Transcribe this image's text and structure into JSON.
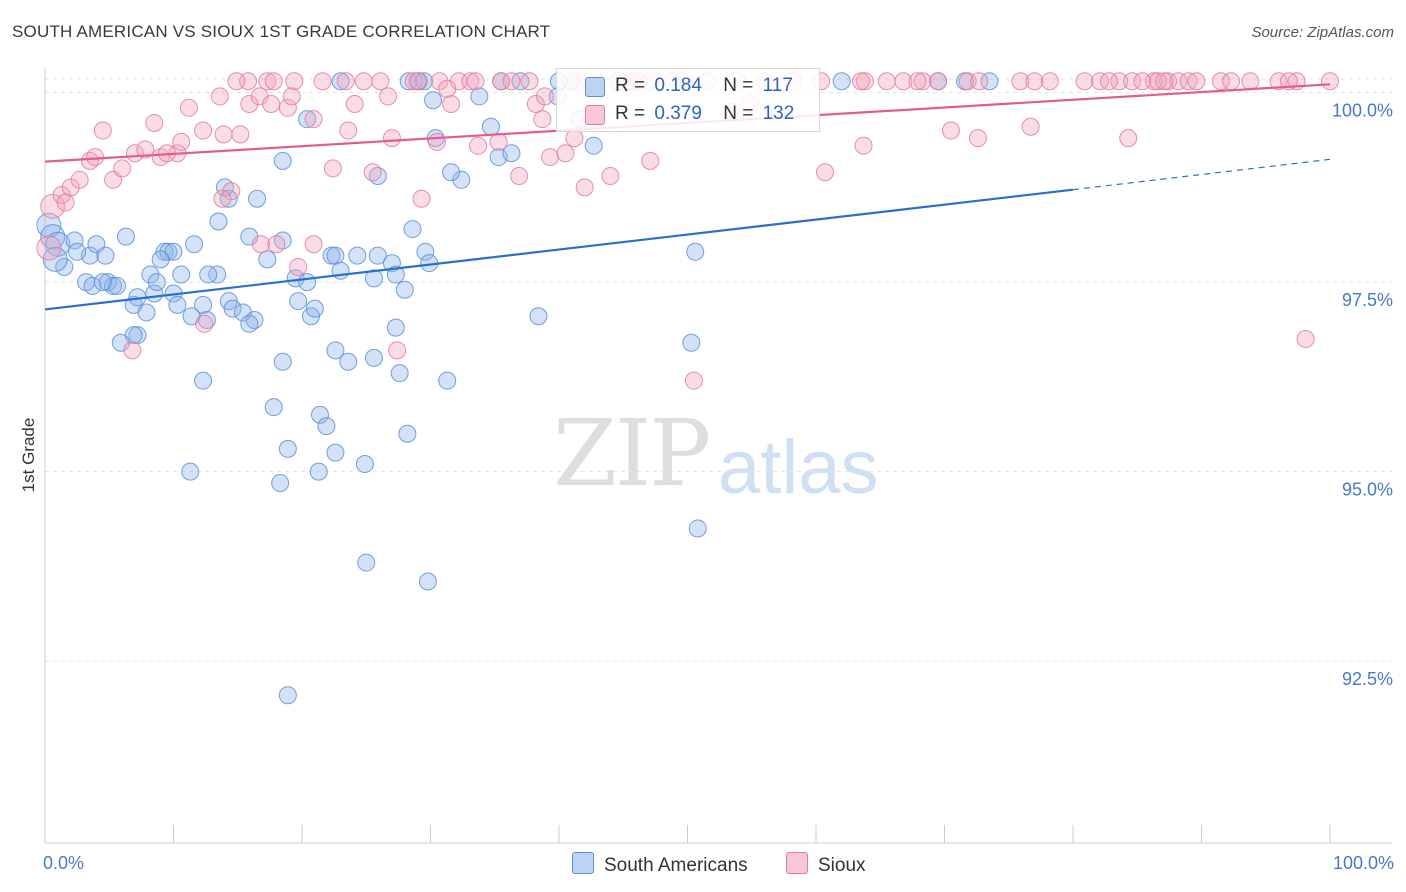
{
  "title": "SOUTH AMERICAN VS SIOUX 1ST GRADE CORRELATION CHART",
  "source": "Source: ZipAtlas.com",
  "watermark": {
    "zip": "ZIP",
    "atlas": "atlas"
  },
  "chart_data": {
    "type": "scatter",
    "ylabel": "1st Grade",
    "xlabel": "",
    "xlim": [
      0,
      100
    ],
    "ylim": [
      90.1,
      100.18
    ],
    "y_ticks": [
      {
        "value": 100.0,
        "label": "100.0%"
      },
      {
        "value": 97.5,
        "label": "97.5%"
      },
      {
        "value": 95.0,
        "label": "95.0%"
      },
      {
        "value": 92.5,
        "label": "92.5%"
      }
    ],
    "x_ticks": [
      {
        "value": 0,
        "label": "0.0%"
      },
      {
        "value": 100,
        "label": "100.0%"
      }
    ],
    "legend": {
      "rows": [
        {
          "r_label": "R =",
          "r": "0.184",
          "n_label": "N =",
          "n": "117",
          "color": "#8fb3ea"
        },
        {
          "r_label": "R =",
          "r": "0.379",
          "n_label": "N =",
          "n": "132",
          "color": "#f2a4be"
        }
      ]
    },
    "series": [
      {
        "name": "South Americans",
        "color": "#8fb3ea",
        "stroke": "#5b8fd8",
        "trend": {
          "x0": 0,
          "y0": 97.14,
          "x1": 80,
          "y1": 98.72,
          "dash_to_x": 100,
          "dash_to_y": 99.12,
          "color": "#2a6fd0"
        },
        "points": [
          [
            0.3,
            98.25
          ],
          [
            0.6,
            98.1
          ],
          [
            1,
            98
          ],
          [
            1.5,
            97.7
          ],
          [
            0.8,
            97.8
          ],
          [
            2.3,
            98.05
          ],
          [
            3.5,
            97.85
          ],
          [
            3.2,
            97.5
          ],
          [
            3.7,
            97.45
          ],
          [
            2.5,
            97.9
          ],
          [
            4,
            98
          ],
          [
            4.7,
            97.85
          ],
          [
            4.9,
            97.5
          ],
          [
            5.3,
            97.45
          ],
          [
            5.6,
            97.45
          ],
          [
            6.3,
            98.1
          ],
          [
            6.9,
            97.2
          ],
          [
            7.2,
            97.3
          ],
          [
            7.9,
            97.1
          ],
          [
            8.2,
            97.6
          ],
          [
            8.5,
            97.35
          ],
          [
            9.3,
            97.9
          ],
          [
            9.6,
            97.9
          ],
          [
            10,
            97.35
          ],
          [
            10.3,
            97.2
          ],
          [
            10.6,
            97.6
          ],
          [
            11.4,
            97.05
          ],
          [
            12.3,
            97.2
          ],
          [
            12.6,
            97
          ],
          [
            13.4,
            97.6
          ],
          [
            12.7,
            97.6
          ],
          [
            14.3,
            97.25
          ],
          [
            14.6,
            97.15
          ],
          [
            15.4,
            97.1
          ],
          [
            16.3,
            97
          ],
          [
            15.9,
            96.95
          ],
          [
            17.3,
            97.8
          ],
          [
            18.5,
            98.05
          ],
          [
            19.5,
            97.55
          ],
          [
            19.7,
            97.25
          ],
          [
            20.4,
            97.5
          ],
          [
            20.7,
            97.05
          ],
          [
            21,
            97.15
          ],
          [
            22.3,
            97.85
          ],
          [
            22.6,
            97.85
          ],
          [
            23,
            97.65
          ],
          [
            24.3,
            97.85
          ],
          [
            25.9,
            97.85
          ],
          [
            25.6,
            97.55
          ],
          [
            27,
            97.75
          ],
          [
            27.3,
            97.6
          ],
          [
            28,
            97.4
          ],
          [
            28.6,
            98.2
          ],
          [
            29.6,
            97.9
          ],
          [
            29.9,
            97.75
          ],
          [
            16.5,
            98.6
          ],
          [
            14.3,
            98.6
          ],
          [
            14,
            98.75
          ],
          [
            15.9,
            98.1
          ],
          [
            11.6,
            98
          ],
          [
            10,
            97.9
          ],
          [
            8.7,
            97.5
          ],
          [
            7.2,
            96.8
          ],
          [
            6.9,
            96.8
          ],
          [
            5.9,
            96.7
          ],
          [
            12.3,
            96.2
          ],
          [
            18.5,
            96.45
          ],
          [
            22.6,
            96.6
          ],
          [
            23.6,
            96.45
          ],
          [
            25.6,
            96.5
          ],
          [
            27.3,
            96.9
          ],
          [
            27.6,
            96.3
          ],
          [
            31.3,
            96.2
          ],
          [
            17.8,
            95.85
          ],
          [
            21.4,
            95.75
          ],
          [
            21.9,
            95.6
          ],
          [
            18.9,
            95.3
          ],
          [
            22.6,
            95.25
          ],
          [
            24.9,
            95.1
          ],
          [
            28.2,
            95.5
          ],
          [
            11.3,
            95
          ],
          [
            18.3,
            94.85
          ],
          [
            21.3,
            95
          ],
          [
            25,
            93.8
          ],
          [
            29.8,
            93.55
          ],
          [
            18.9,
            92.05
          ],
          [
            38.4,
            97.05
          ],
          [
            34.7,
            99.55
          ],
          [
            35.3,
            99.15
          ],
          [
            36.3,
            99.2
          ],
          [
            32.4,
            98.85
          ],
          [
            31.6,
            98.95
          ],
          [
            30.4,
            99.4
          ],
          [
            29.1,
            100.15
          ],
          [
            30.2,
            99.9
          ],
          [
            28.3,
            100.15
          ],
          [
            23,
            100.15
          ],
          [
            29.5,
            100.15
          ],
          [
            40,
            100.15
          ],
          [
            39.9,
            99.95
          ],
          [
            35.5,
            100.15
          ],
          [
            33.8,
            99.95
          ],
          [
            41.6,
            99.65
          ],
          [
            42.7,
            99.3
          ],
          [
            20.4,
            99.65
          ],
          [
            25.9,
            98.9
          ],
          [
            37,
            100.15
          ],
          [
            50.6,
            97.9
          ],
          [
            50.3,
            96.7
          ],
          [
            50.8,
            94.25
          ],
          [
            69.5,
            100.15
          ],
          [
            71.6,
            100.15
          ],
          [
            73.5,
            100.15
          ],
          [
            62,
            100.15
          ],
          [
            18.5,
            99.1
          ],
          [
            13.5,
            98.3
          ],
          [
            9,
            97.8
          ],
          [
            4.5,
            97.5
          ]
        ]
      },
      {
        "name": "Sioux",
        "color": "#f2a4be",
        "stroke": "#e07c9d",
        "trend": {
          "x0": 0,
          "y0": 99.09,
          "x1": 100,
          "y1": 100.11,
          "color": "#e35d8a"
        },
        "points": [
          [
            0.3,
            97.95
          ],
          [
            0.6,
            98.5
          ],
          [
            1.3,
            98.65
          ],
          [
            1.6,
            98.55
          ],
          [
            2,
            98.75
          ],
          [
            2.7,
            98.85
          ],
          [
            3.5,
            99.1
          ],
          [
            3.9,
            99.15
          ],
          [
            4.5,
            99.5
          ],
          [
            5.3,
            98.85
          ],
          [
            6,
            99
          ],
          [
            7,
            99.2
          ],
          [
            7.8,
            99.25
          ],
          [
            8.5,
            99.6
          ],
          [
            9,
            99.15
          ],
          [
            10.3,
            99.2
          ],
          [
            10.6,
            99.35
          ],
          [
            11.2,
            99.8
          ],
          [
            12.3,
            99.5
          ],
          [
            13.9,
            99.45
          ],
          [
            15.2,
            99.45
          ],
          [
            15.9,
            99.85
          ],
          [
            16.7,
            99.95
          ],
          [
            17.6,
            99.85
          ],
          [
            18.9,
            99.8
          ],
          [
            20.9,
            99.65
          ],
          [
            22.4,
            99
          ],
          [
            23.6,
            99.5
          ],
          [
            25.5,
            98.95
          ],
          [
            27,
            99.4
          ],
          [
            29.3,
            98.6
          ],
          [
            30.5,
            99.35
          ],
          [
            31.6,
            99.85
          ],
          [
            33.7,
            99.3
          ],
          [
            35.3,
            99.35
          ],
          [
            36.9,
            98.9
          ],
          [
            38.7,
            99.65
          ],
          [
            39.3,
            99.15
          ],
          [
            40.5,
            99.2
          ],
          [
            41.2,
            99.4
          ],
          [
            42,
            98.75
          ],
          [
            44,
            98.9
          ],
          [
            47.1,
            99.1
          ],
          [
            53.3,
            99.75
          ],
          [
            54.9,
            99.85
          ],
          [
            60.7,
            98.95
          ],
          [
            63.7,
            99.3
          ],
          [
            70.5,
            99.5
          ],
          [
            72.6,
            99.4
          ],
          [
            76.7,
            99.55
          ],
          [
            84.3,
            99.4
          ],
          [
            98.1,
            96.75
          ],
          [
            18,
            98
          ],
          [
            19.7,
            97.7
          ],
          [
            20.9,
            98
          ],
          [
            14.5,
            98.7
          ],
          [
            16.8,
            98
          ],
          [
            9.5,
            99.2
          ],
          [
            13.8,
            98.6
          ],
          [
            6.8,
            96.6
          ],
          [
            12.4,
            96.95
          ],
          [
            27.4,
            96.6
          ],
          [
            50.5,
            96.2
          ],
          [
            15.8,
            100.15
          ],
          [
            14.9,
            100.15
          ],
          [
            17.3,
            100.15
          ],
          [
            17.8,
            100.15
          ],
          [
            19.4,
            100.15
          ],
          [
            21.6,
            100.15
          ],
          [
            23.4,
            100.15
          ],
          [
            24.8,
            100.15
          ],
          [
            26.1,
            100.15
          ],
          [
            28.7,
            100.15
          ],
          [
            29,
            100.15
          ],
          [
            30.7,
            100.15
          ],
          [
            32.2,
            100.15
          ],
          [
            33.1,
            100.15
          ],
          [
            33.5,
            100.15
          ],
          [
            35.5,
            100.15
          ],
          [
            36.3,
            100.15
          ],
          [
            37.7,
            100.15
          ],
          [
            40.9,
            100.15
          ],
          [
            41.4,
            100.15
          ],
          [
            44.6,
            100.15
          ],
          [
            47.1,
            100.15
          ],
          [
            48.8,
            100.15
          ],
          [
            49.6,
            100.15
          ],
          [
            51.5,
            100.15
          ],
          [
            53.9,
            100.15
          ],
          [
            56,
            100.15
          ],
          [
            58.2,
            100.15
          ],
          [
            60.4,
            100.15
          ],
          [
            63.8,
            100.15
          ],
          [
            65.5,
            100.15
          ],
          [
            66.8,
            100.15
          ],
          [
            68.3,
            100.15
          ],
          [
            69.5,
            100.15
          ],
          [
            71.8,
            100.15
          ],
          [
            72.7,
            100.15
          ],
          [
            75.9,
            100.15
          ],
          [
            77,
            100.15
          ],
          [
            78.2,
            100.15
          ],
          [
            80.9,
            100.15
          ],
          [
            82.1,
            100.15
          ],
          [
            83.6,
            100.15
          ],
          [
            84.6,
            100.15
          ],
          [
            86.3,
            100.15
          ],
          [
            87.4,
            100.15
          ],
          [
            88.2,
            100.15
          ],
          [
            89,
            100.15
          ],
          [
            89.6,
            100.15
          ],
          [
            91.5,
            100.15
          ],
          [
            93.8,
            100.15
          ],
          [
            96,
            100.15
          ],
          [
            97.4,
            100.15
          ],
          [
            100,
            100.15
          ],
          [
            45.7,
            100.15
          ],
          [
            46.2,
            100.15
          ],
          [
            63.5,
            100.15
          ],
          [
            67.9,
            100.15
          ],
          [
            82.8,
            100.15
          ],
          [
            85.4,
            100.15
          ],
          [
            86.6,
            100.15
          ],
          [
            87.1,
            100.15
          ],
          [
            92.3,
            100.15
          ],
          [
            96.8,
            100.15
          ],
          [
            19.2,
            99.95
          ],
          [
            24.1,
            99.85
          ],
          [
            38.2,
            99.85
          ],
          [
            26.7,
            99.95
          ],
          [
            38.9,
            99.95
          ],
          [
            13.6,
            99.95
          ],
          [
            31.3,
            100.05
          ]
        ]
      }
    ]
  }
}
